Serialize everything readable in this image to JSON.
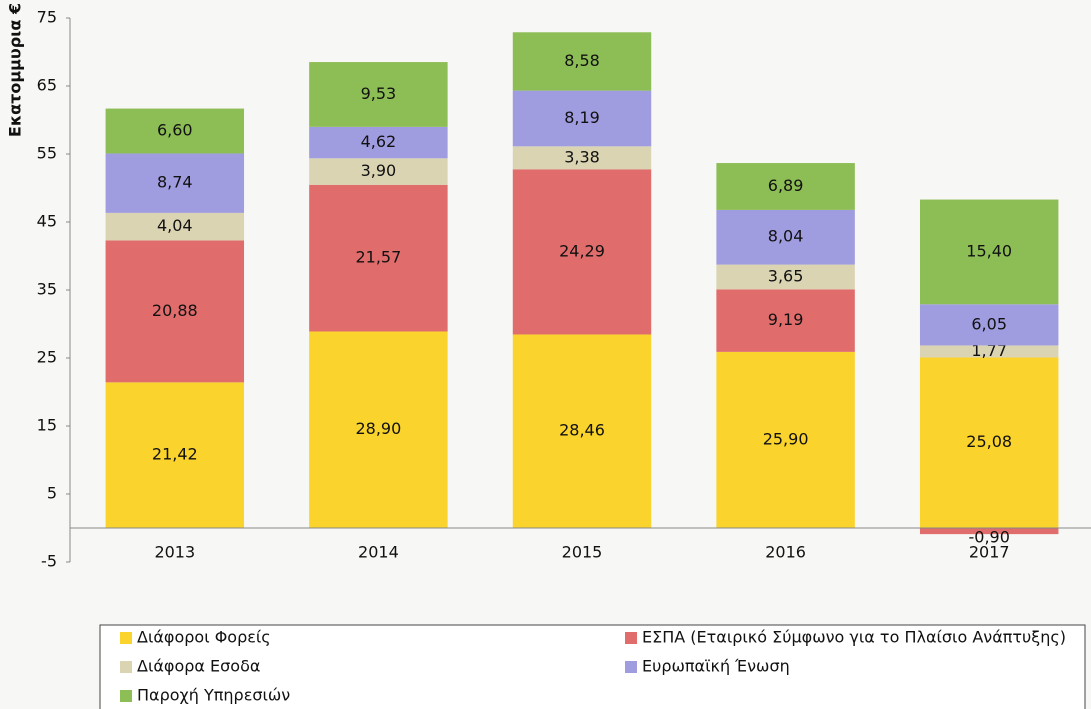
{
  "chart_data": {
    "type": "stacked-bar",
    "y_label": "Εκατομμυρια €",
    "categories": [
      "2013",
      "2014",
      "2015",
      "2016",
      "2017"
    ],
    "series": [
      {
        "name": "Διάφοροι Φορείς",
        "color": "#fad32c",
        "values": [
          21.42,
          28.9,
          28.46,
          25.9,
          25.08
        ],
        "value_labels": [
          "21,42",
          "28,90",
          "28,46",
          "25,90",
          "25,08"
        ]
      },
      {
        "name": "ΕΣΠΑ (Εταιρικό Σύμφωνο για το Πλαίσιο Ανάπτυξης)",
        "color": "#e06c6c",
        "values": [
          20.88,
          21.57,
          24.29,
          9.19,
          -0.9
        ],
        "value_labels": [
          "20,88",
          "21,57",
          "24,29",
          "9,19",
          "-0,90"
        ]
      },
      {
        "name": "Διάφορα Εσοδα",
        "color": "#dad4b3",
        "values": [
          4.04,
          3.9,
          3.38,
          3.65,
          1.77
        ],
        "value_labels": [
          "4,04",
          "3,90",
          "3,38",
          "3,65",
          "1,77"
        ]
      },
      {
        "name": "Ευρωπαϊκή Ένωση",
        "color": "#a09ce0",
        "values": [
          8.74,
          4.62,
          8.19,
          8.04,
          6.05
        ],
        "value_labels": [
          "8,74",
          "4,62",
          "8,19",
          "8,04",
          "6,05"
        ]
      },
      {
        "name": "Παροχή Υπηρεσιών",
        "color": "#8dbd55",
        "values": [
          6.6,
          9.53,
          8.58,
          6.89,
          15.4
        ],
        "value_labels": [
          "6,60",
          "9,53",
          "8,58",
          "6,89",
          "15,40"
        ]
      }
    ],
    "ylim": [
      -5,
      75
    ],
    "yticks": [
      -5,
      5,
      15,
      25,
      35,
      45,
      55,
      65,
      75
    ],
    "grid": false,
    "legend": "bottom"
  }
}
